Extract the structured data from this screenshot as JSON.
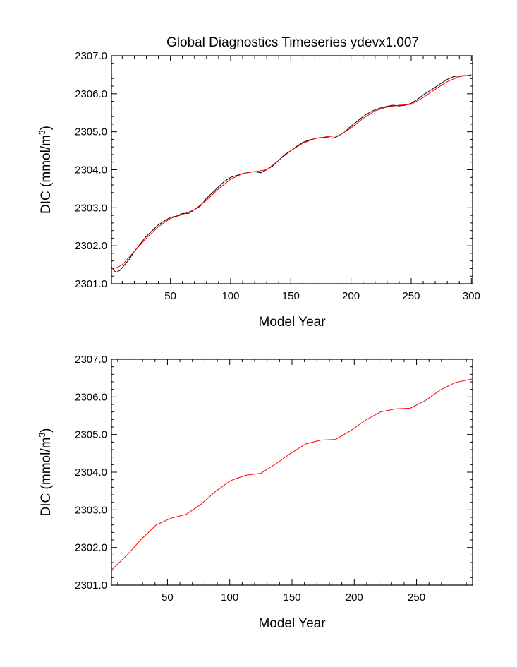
{
  "chart_data": [
    {
      "type": "line",
      "title": "Global Diagnostics Timeseries ydevx1.007",
      "xlabel": "Model Year",
      "ylabel": "DIC (mmol/m",
      "ylabel_sup": "3",
      "ylabel_close": ")",
      "xlim": [
        1,
        301
      ],
      "ylim": [
        2301.0,
        2307.0
      ],
      "x_ticks": [
        50,
        100,
        150,
        200,
        250,
        300
      ],
      "x_tick_labels": [
        "50",
        "100",
        "150",
        "200",
        "250",
        "300"
      ],
      "y_ticks": [
        2301.0,
        2302.0,
        2303.0,
        2304.0,
        2305.0,
        2306.0,
        2307.0
      ],
      "y_tick_labels": [
        "2301.0",
        "2302.0",
        "2303.0",
        "2304.0",
        "2305.0",
        "2306.0",
        "2307.0"
      ],
      "series": [
        {
          "color": "#000000",
          "x": [
            1,
            3,
            5,
            8,
            12,
            16,
            20,
            25,
            30,
            35,
            40,
            45,
            50,
            55,
            60,
            65,
            70,
            75,
            80,
            85,
            90,
            95,
            100,
            105,
            110,
            115,
            120,
            125,
            130,
            135,
            140,
            145,
            150,
            155,
            160,
            165,
            170,
            175,
            180,
            185,
            190,
            195,
            200,
            205,
            210,
            215,
            220,
            225,
            230,
            235,
            240,
            245,
            250,
            255,
            260,
            265,
            270,
            275,
            280,
            285,
            290,
            295,
            300
          ],
          "y": [
            2301.45,
            2301.35,
            2301.3,
            2301.35,
            2301.5,
            2301.65,
            2301.85,
            2302.05,
            2302.25,
            2302.4,
            2302.55,
            2302.65,
            2302.75,
            2302.78,
            2302.85,
            2302.85,
            2302.95,
            2303.05,
            2303.25,
            2303.4,
            2303.55,
            2303.7,
            2303.8,
            2303.85,
            2303.9,
            2303.93,
            2303.95,
            2303.92,
            2304.0,
            2304.1,
            2304.25,
            2304.4,
            2304.5,
            2304.62,
            2304.72,
            2304.78,
            2304.82,
            2304.85,
            2304.85,
            2304.83,
            2304.9,
            2305.0,
            2305.15,
            2305.27,
            2305.4,
            2305.5,
            2305.58,
            2305.63,
            2305.67,
            2305.7,
            2305.68,
            2305.7,
            2305.75,
            2305.85,
            2305.97,
            2306.07,
            2306.17,
            2306.28,
            2306.38,
            2306.45,
            2306.47,
            2306.48,
            2306.48
          ]
        },
        {
          "color": "#ff0000",
          "x": [
            1,
            5,
            10,
            20,
            30,
            40,
            50,
            60,
            70,
            80,
            90,
            100,
            110,
            120,
            130,
            140,
            150,
            160,
            170,
            180,
            190,
            200,
            210,
            220,
            230,
            240,
            250,
            260,
            270,
            280,
            290,
            300
          ],
          "y": [
            2301.4,
            2301.42,
            2301.5,
            2301.85,
            2302.2,
            2302.5,
            2302.72,
            2302.82,
            2302.95,
            2303.2,
            2303.5,
            2303.75,
            2303.9,
            2303.95,
            2304.0,
            2304.25,
            2304.5,
            2304.7,
            2304.82,
            2304.87,
            2304.9,
            2305.1,
            2305.35,
            2305.55,
            2305.65,
            2305.7,
            2305.72,
            2305.9,
            2306.12,
            2306.32,
            2306.45,
            2306.5
          ]
        }
      ]
    },
    {
      "type": "line",
      "title": "",
      "xlabel": "Model Year",
      "ylabel": "DIC (mmol/m",
      "ylabel_sup": "3",
      "ylabel_close": ")",
      "xlim": [
        5,
        295
      ],
      "ylim": [
        2301.0,
        2307.0
      ],
      "x_ticks": [
        50,
        100,
        150,
        200,
        250
      ],
      "x_tick_labels": [
        "50",
        "100",
        "150",
        "200",
        "250"
      ],
      "y_ticks": [
        2301.0,
        2302.0,
        2303.0,
        2304.0,
        2305.0,
        2306.0,
        2307.0
      ],
      "y_tick_labels": [
        "2301.0",
        "2302.0",
        "2303.0",
        "2304.0",
        "2305.0",
        "2306.0",
        "2307.0"
      ],
      "series": [
        {
          "color": "#ff0000",
          "x": [
            5,
            17,
            29,
            41,
            53,
            65,
            77,
            89,
            101,
            113,
            125,
            137,
            149,
            161,
            173,
            185,
            197,
            209,
            221,
            233,
            245,
            257,
            269,
            281,
            295
          ],
          "y": [
            2301.4,
            2301.78,
            2302.22,
            2302.6,
            2302.78,
            2302.88,
            2303.15,
            2303.5,
            2303.78,
            2303.92,
            2303.97,
            2304.22,
            2304.5,
            2304.75,
            2304.85,
            2304.87,
            2305.1,
            2305.38,
            2305.6,
            2305.68,
            2305.7,
            2305.9,
            2306.18,
            2306.38,
            2306.48
          ]
        }
      ]
    }
  ]
}
